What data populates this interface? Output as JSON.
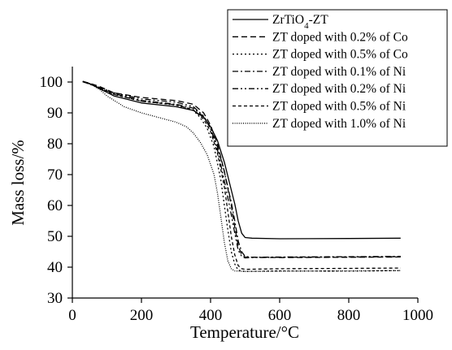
{
  "chart_data": {
    "type": "line",
    "title": "",
    "xlabel": "Temperature/°C",
    "ylabel": "Mass loss/%",
    "xlim": [
      0,
      1000
    ],
    "ylim": [
      30,
      105
    ],
    "xticks": [
      0,
      200,
      400,
      600,
      800,
      1000
    ],
    "yticks": [
      30,
      40,
      50,
      60,
      70,
      80,
      90,
      100
    ],
    "xtick_labels": [
      "0",
      "200",
      "400",
      "600",
      "800",
      "1000"
    ],
    "ytick_labels": [
      "30",
      "40",
      "50",
      "60",
      "70",
      "80",
      "90",
      "100"
    ],
    "grid": false,
    "legend_position": "top-right",
    "colors": {
      "line": "#000000",
      "background": "#ffffff"
    },
    "series": [
      {
        "name": "ZrTiO4-ZT",
        "name_parts": [
          "ZrTiO",
          "4",
          "-ZT"
        ],
        "dash": "solid",
        "x": [
          30,
          50,
          80,
          120,
          200,
          300,
          350,
          380,
          400,
          420,
          440,
          460,
          470,
          480,
          490,
          500,
          520,
          600,
          800,
          950
        ],
        "y": [
          100.2,
          99.5,
          97.8,
          95.5,
          93.2,
          92.0,
          90.8,
          88.6,
          85.5,
          81.0,
          74.0,
          65.0,
          60.5,
          55.0,
          51.0,
          49.6,
          49.4,
          49.2,
          49.3,
          49.4
        ]
      },
      {
        "name": "ZT doped with 0.2% of Co",
        "dash": "dashed",
        "x": [
          30,
          50,
          80,
          120,
          200,
          300,
          350,
          380,
          400,
          420,
          440,
          460,
          470,
          480,
          490,
          500,
          520,
          600,
          800,
          950
        ],
        "y": [
          100.2,
          99.6,
          98.5,
          96.5,
          95.0,
          94.0,
          92.8,
          90.0,
          86.0,
          80.0,
          71.0,
          60.0,
          53.0,
          47.0,
          44.0,
          43.3,
          43.2,
          43.1,
          43.2,
          43.3
        ]
      },
      {
        "name": "ZT doped with 0.5% of Co",
        "dash": "dotted",
        "x": [
          30,
          50,
          80,
          120,
          200,
          300,
          350,
          370,
          390,
          410,
          430,
          440,
          450,
          460,
          470,
          480,
          500,
          600,
          800,
          950
        ],
        "y": [
          100.2,
          99.3,
          98.0,
          96.0,
          93.8,
          92.5,
          90.8,
          88.5,
          85.0,
          79.0,
          68.0,
          60.0,
          52.0,
          45.0,
          41.0,
          39.0,
          38.6,
          38.8,
          38.7,
          38.9
        ]
      },
      {
        "name": "ZT doped with 0.1% of Ni",
        "dash": "dash-dot",
        "x": [
          30,
          50,
          80,
          120,
          200,
          300,
          350,
          380,
          400,
          420,
          440,
          460,
          470,
          480,
          490,
          500,
          520,
          600,
          800,
          950
        ],
        "y": [
          100.1,
          99.4,
          98.0,
          96.2,
          94.0,
          92.8,
          91.5,
          88.8,
          85.0,
          79.0,
          71.0,
          61.0,
          55.0,
          48.5,
          45.0,
          43.5,
          43.2,
          43.3,
          43.4,
          43.5
        ]
      },
      {
        "name": "ZT doped with 0.2% of Ni",
        "dash": "dash-dot-dot",
        "x": [
          30,
          50,
          80,
          120,
          200,
          300,
          350,
          380,
          400,
          420,
          440,
          460,
          470,
          480,
          490,
          500,
          520,
          600,
          800,
          950
        ],
        "y": [
          100.1,
          99.4,
          98.2,
          96.5,
          94.5,
          93.5,
          92.0,
          89.0,
          85.0,
          78.0,
          68.0,
          57.0,
          51.0,
          45.5,
          43.5,
          43.0,
          43.1,
          43.2,
          43.3,
          43.4
        ]
      },
      {
        "name": "ZT doped with 0.5% of Ni",
        "dash": "short-dash",
        "x": [
          30,
          50,
          80,
          120,
          200,
          300,
          350,
          380,
          400,
          420,
          440,
          450,
          460,
          470,
          480,
          490,
          500,
          600,
          800,
          950
        ],
        "y": [
          100.1,
          99.4,
          98.0,
          96.0,
          93.8,
          92.6,
          91.0,
          88.0,
          84.0,
          77.0,
          66.0,
          58.0,
          50.0,
          44.0,
          40.5,
          39.5,
          39.3,
          39.5,
          39.6,
          39.7
        ]
      },
      {
        "name": "ZT doped with 1.0% of Ni",
        "dash": "fine-dot",
        "x": [
          30,
          50,
          80,
          100,
          150,
          200,
          250,
          300,
          330,
          350,
          370,
          390,
          410,
          420,
          430,
          440,
          450,
          460,
          470,
          500,
          600,
          800,
          950
        ],
        "y": [
          100.2,
          99.5,
          97.5,
          95.5,
          92.0,
          90.0,
          88.5,
          87.0,
          85.5,
          83.5,
          80.5,
          76.5,
          70.0,
          64.0,
          56.0,
          48.0,
          42.0,
          39.5,
          38.8,
          38.6,
          38.7,
          38.8,
          38.9
        ]
      }
    ]
  }
}
